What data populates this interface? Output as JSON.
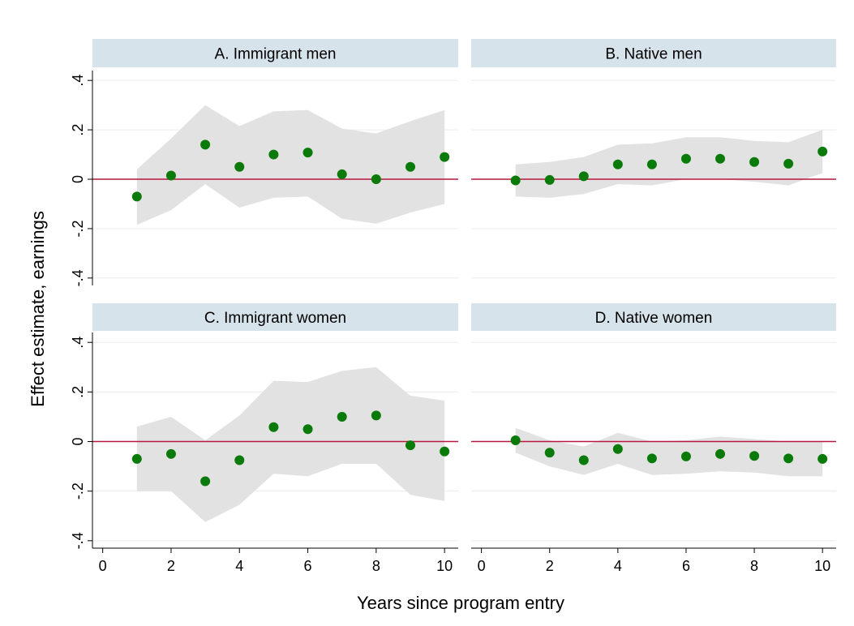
{
  "chart_data": {
    "type": "scatter",
    "ylabel": "Effect estimate, earnings",
    "xlabel": "Years since program entry",
    "xlim": [
      -0.3,
      10.4
    ],
    "ylim": [
      -0.43,
      0.44
    ],
    "xticks": [
      0,
      2,
      4,
      6,
      8,
      10
    ],
    "xtick_labels": [
      "0",
      "2",
      "4",
      "6",
      "8",
      "10"
    ],
    "yticks": [
      -0.4,
      -0.2,
      0,
      0.2,
      0.4
    ],
    "ytick_labels": [
      "-.4",
      "-.2",
      "0",
      ".2",
      ".4"
    ],
    "reference_line": 0,
    "grid": true,
    "colors": {
      "point": "#0a7a0a",
      "ci_band": "#e2e2e2",
      "reference": "#b5193f",
      "panel_header": "#d7e3ea",
      "grid": "#ececec"
    },
    "panels": [
      {
        "title": "A. Immigrant men",
        "x": [
          1,
          2,
          3,
          4,
          5,
          6,
          7,
          8,
          9,
          10
        ],
        "y": [
          -0.07,
          0.015,
          0.14,
          0.05,
          0.1,
          0.108,
          0.02,
          0.0,
          0.05,
          0.09
        ],
        "ci_lower": [
          -0.185,
          -0.125,
          -0.02,
          -0.115,
          -0.075,
          -0.07,
          -0.16,
          -0.18,
          -0.135,
          -0.1
        ],
        "ci_upper": [
          0.04,
          0.165,
          0.3,
          0.215,
          0.275,
          0.28,
          0.205,
          0.185,
          0.235,
          0.28
        ]
      },
      {
        "title": "B. Native men",
        "x": [
          1,
          2,
          3,
          4,
          5,
          6,
          7,
          8,
          9,
          10
        ],
        "y": [
          -0.005,
          -0.003,
          0.012,
          0.06,
          0.06,
          0.083,
          0.083,
          0.07,
          0.063,
          0.112
        ],
        "ci_lower": [
          -0.07,
          -0.075,
          -0.06,
          -0.02,
          -0.025,
          0.0,
          0.0,
          -0.01,
          -0.025,
          0.025
        ],
        "ci_upper": [
          0.06,
          0.07,
          0.09,
          0.14,
          0.145,
          0.17,
          0.17,
          0.155,
          0.15,
          0.2
        ]
      },
      {
        "title": "C. Immigrant women",
        "x": [
          1,
          2,
          3,
          4,
          5,
          6,
          7,
          8,
          9,
          10
        ],
        "y": [
          -0.07,
          -0.05,
          -0.16,
          -0.075,
          0.058,
          0.05,
          0.1,
          0.105,
          -0.015,
          -0.04
        ],
        "ci_lower": [
          -0.2,
          -0.2,
          -0.325,
          -0.255,
          -0.13,
          -0.14,
          -0.09,
          -0.09,
          -0.215,
          -0.24
        ],
        "ci_upper": [
          0.06,
          0.1,
          0.005,
          0.105,
          0.245,
          0.24,
          0.285,
          0.3,
          0.185,
          0.165
        ]
      },
      {
        "title": "D. Native women",
        "x": [
          1,
          2,
          3,
          4,
          5,
          6,
          7,
          8,
          9,
          10
        ],
        "y": [
          0.005,
          -0.045,
          -0.075,
          -0.03,
          -0.068,
          -0.06,
          -0.05,
          -0.058,
          -0.068,
          -0.07
        ],
        "ci_lower": [
          -0.045,
          -0.1,
          -0.135,
          -0.09,
          -0.135,
          -0.13,
          -0.12,
          -0.125,
          -0.14,
          -0.14
        ],
        "ci_upper": [
          0.055,
          0.005,
          -0.02,
          0.035,
          0.0,
          0.005,
          0.02,
          0.01,
          0.0,
          0.0
        ]
      }
    ]
  }
}
